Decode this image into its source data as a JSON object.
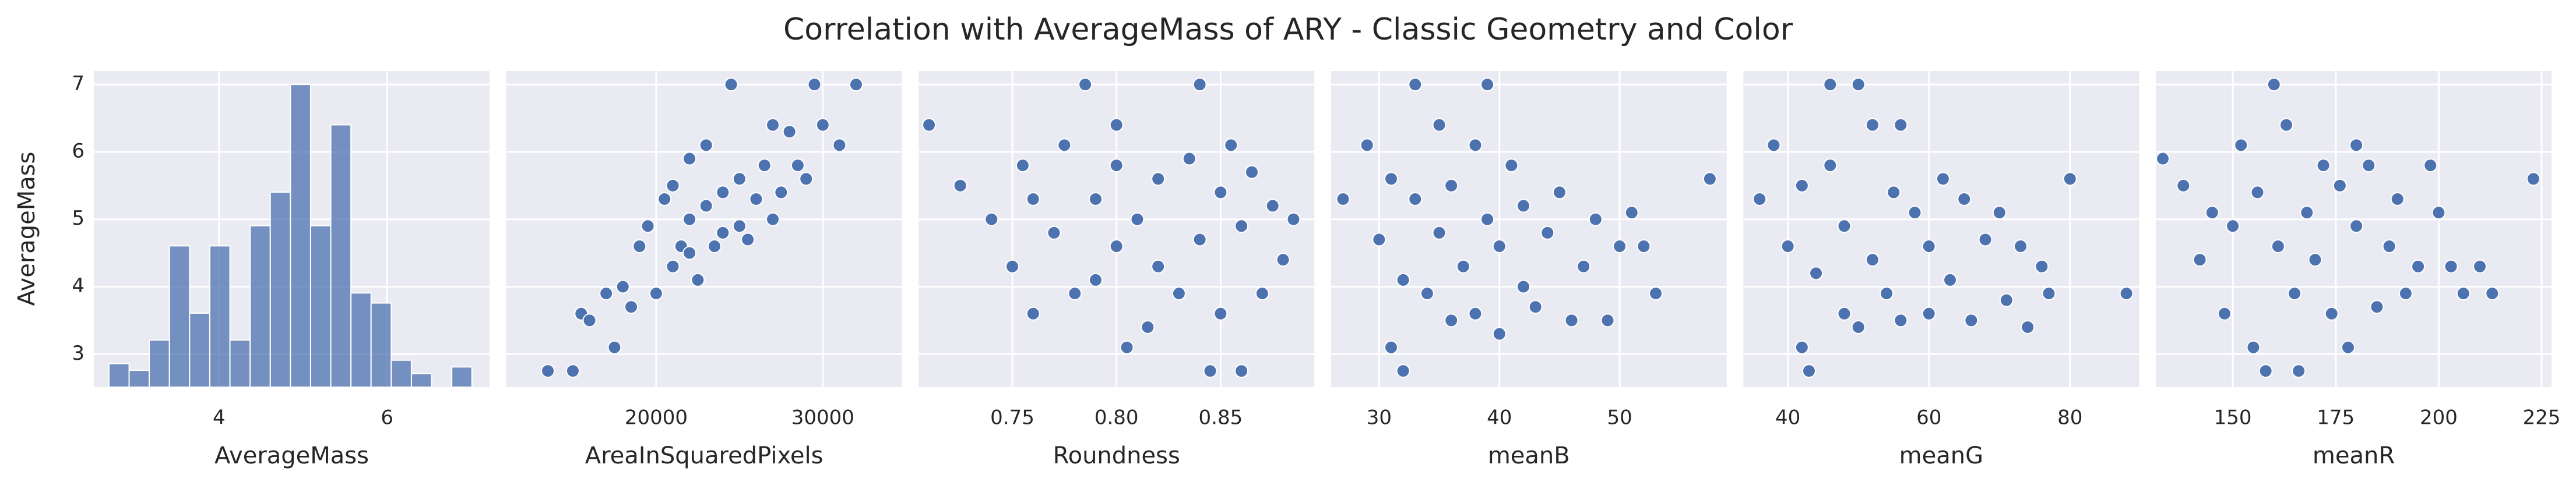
{
  "title": "Correlation with AverageMass of ARY - Classic Geometry and Color",
  "y_axis": {
    "label": "AverageMass",
    "ylim": [
      2.51,
      7.2
    ],
    "yticks": [
      3,
      4,
      5,
      6,
      7
    ]
  },
  "chart_data": [
    {
      "type": "histogram",
      "xlabel": "AverageMass",
      "color": "#4c72b0",
      "xlim": [
        2.51,
        7.22
      ],
      "xticks": [
        4,
        6
      ],
      "ylim": [
        0,
        94
      ],
      "bins": [
        2.69,
        2.93,
        3.17,
        3.41,
        3.65,
        3.89,
        4.13,
        4.37,
        4.61,
        4.85,
        5.09,
        5.33,
        5.57,
        5.81,
        6.05,
        6.29,
        6.53,
        6.77,
        7.01
      ],
      "values": [
        7,
        5,
        14,
        42,
        22,
        42,
        14,
        48,
        58,
        90,
        48,
        78,
        28,
        25,
        8,
        4,
        0,
        6
      ]
    },
    {
      "type": "scatter",
      "xlabel": "AreaInSquaredPixels",
      "color": "#4c72b0",
      "xlim": [
        11000,
        34750
      ],
      "xticks": [
        20000,
        30000
      ],
      "x": [
        13500,
        15000,
        15500,
        16000,
        17000,
        17500,
        18000,
        18500,
        19000,
        19500,
        20000,
        20500,
        21000,
        21000,
        21500,
        22000,
        22000,
        22500,
        23000,
        23000,
        23500,
        24000,
        24500,
        25000,
        25000,
        25500,
        26000,
        26500,
        27000,
        27500,
        28000,
        28500,
        29000,
        29500,
        30000,
        31000,
        32000,
        27000,
        22000,
        24000
      ],
      "y": [
        2.75,
        2.75,
        3.6,
        3.5,
        3.9,
        3.1,
        4.0,
        3.7,
        4.6,
        4.9,
        3.9,
        5.3,
        4.3,
        5.5,
        4.6,
        5.0,
        5.9,
        4.1,
        5.2,
        6.1,
        4.6,
        5.4,
        7.0,
        4.9,
        5.6,
        4.7,
        5.3,
        5.8,
        5.0,
        5.4,
        6.3,
        5.8,
        5.6,
        7.0,
        6.4,
        6.1,
        7.0,
        6.4,
        4.5,
        4.8
      ]
    },
    {
      "type": "scatter",
      "xlabel": "Roundness",
      "color": "#4c72b0",
      "xlim": [
        0.705,
        0.895
      ],
      "xticks": [
        0.75,
        {
          "value": 0.8,
          "label": "0.80"
        },
        0.85
      ],
      "x": [
        0.71,
        0.725,
        0.74,
        0.75,
        0.755,
        0.76,
        0.77,
        0.775,
        0.78,
        0.785,
        0.79,
        0.79,
        0.8,
        0.8,
        0.805,
        0.81,
        0.815,
        0.82,
        0.82,
        0.83,
        0.835,
        0.84,
        0.84,
        0.845,
        0.85,
        0.85,
        0.855,
        0.86,
        0.86,
        0.865,
        0.87,
        0.875,
        0.88,
        0.885,
        0.76,
        0.8
      ],
      "y": [
        6.4,
        5.5,
        5.0,
        4.3,
        5.8,
        3.6,
        4.8,
        6.1,
        3.9,
        7.0,
        5.3,
        4.1,
        6.4,
        4.6,
        3.1,
        5.0,
        3.4,
        5.6,
        4.3,
        3.9,
        5.9,
        7.0,
        4.7,
        2.75,
        5.4,
        3.6,
        6.1,
        4.9,
        2.75,
        5.7,
        3.9,
        5.2,
        4.4,
        5.0,
        5.3,
        5.8
      ]
    },
    {
      "type": "scatter",
      "xlabel": "meanB",
      "color": "#4c72b0",
      "xlim": [
        26.0,
        58.9
      ],
      "xticks": [
        30,
        40,
        50
      ],
      "x": [
        27,
        29,
        30,
        31,
        31,
        32,
        32,
        33,
        33,
        34,
        35,
        35,
        36,
        36,
        37,
        38,
        38,
        39,
        39,
        40,
        40,
        41,
        42,
        42,
        43,
        44,
        45,
        46,
        47,
        48,
        49,
        50,
        51,
        53,
        57.5,
        52
      ],
      "y": [
        5.3,
        6.1,
        4.7,
        3.1,
        5.6,
        2.75,
        4.1,
        7.0,
        5.3,
        3.9,
        4.8,
        6.4,
        3.5,
        5.5,
        4.3,
        6.1,
        3.6,
        5.0,
        7.0,
        4.6,
        3.3,
        5.8,
        4.0,
        5.2,
        3.7,
        4.8,
        5.4,
        3.5,
        4.3,
        5.0,
        3.5,
        4.6,
        5.1,
        3.9,
        5.6,
        4.6
      ]
    },
    {
      "type": "scatter",
      "xlabel": "meanG",
      "color": "#4c72b0",
      "xlim": [
        33.7,
        89.8
      ],
      "xticks": [
        40,
        60,
        80
      ],
      "x": [
        36,
        38,
        40,
        42,
        42,
        43,
        44,
        46,
        46,
        48,
        48,
        50,
        50,
        52,
        52,
        54,
        55,
        56,
        58,
        60,
        60,
        62,
        63,
        65,
        66,
        68,
        70,
        71,
        73,
        74,
        76,
        77,
        80,
        88,
        56
      ],
      "y": [
        5.3,
        6.1,
        4.6,
        3.1,
        5.5,
        2.75,
        4.2,
        7.0,
        5.8,
        3.6,
        4.9,
        7.0,
        3.4,
        6.4,
        4.4,
        3.9,
        5.4,
        3.5,
        5.1,
        4.6,
        3.6,
        5.6,
        4.1,
        5.3,
        3.5,
        4.7,
        5.1,
        3.8,
        4.6,
        3.4,
        4.3,
        3.9,
        5.6,
        3.9,
        6.4
      ]
    },
    {
      "type": "scatter",
      "xlabel": "meanR",
      "color": "#4c72b0",
      "xlim": [
        131.3,
        227.4
      ],
      "xticks": [
        150,
        175,
        200,
        225
      ],
      "x": [
        133,
        138,
        142,
        145,
        148,
        150,
        152,
        155,
        156,
        158,
        160,
        161,
        163,
        165,
        166,
        168,
        170,
        172,
        174,
        176,
        178,
        180,
        183,
        185,
        188,
        190,
        192,
        195,
        198,
        200,
        203,
        206,
        210,
        213,
        223,
        180
      ],
      "y": [
        5.9,
        5.5,
        4.4,
        5.1,
        3.6,
        4.9,
        6.1,
        3.1,
        5.4,
        2.75,
        7.0,
        4.6,
        6.4,
        3.9,
        2.75,
        5.1,
        4.4,
        5.8,
        3.6,
        5.5,
        3.1,
        4.9,
        5.8,
        3.7,
        4.6,
        5.3,
        3.9,
        4.3,
        5.8,
        5.1,
        4.3,
        3.9,
        4.3,
        3.9,
        5.6,
        6.1
      ]
    }
  ]
}
